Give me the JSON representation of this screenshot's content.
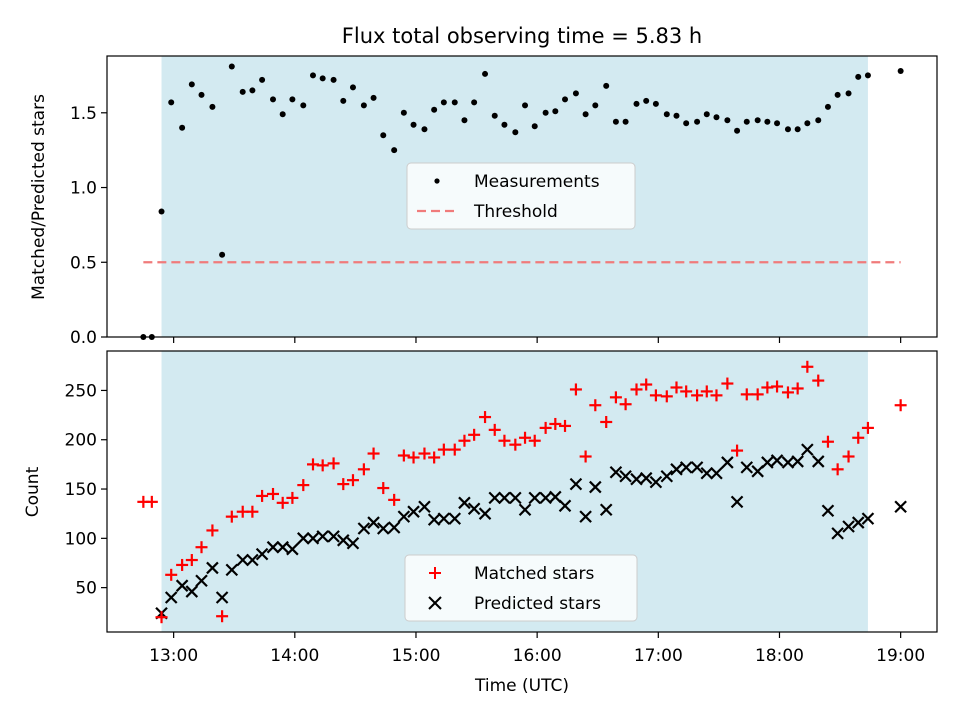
{
  "chart_data": [
    {
      "type": "scatter",
      "title": "Flux total observing time = 5.83 h",
      "ylabel": "Matched/Predicted stars",
      "xlabel": "",
      "x_units": "decimal hours UTC",
      "xlim": [
        12.45,
        19.3
      ],
      "ylim": [
        0,
        1.88
      ],
      "yticks": [
        0.0,
        0.5,
        1.0,
        1.5
      ],
      "ytick_labels": [
        "0.0",
        "0.5",
        "1.0",
        "1.5"
      ],
      "xticks": [
        13,
        14,
        15,
        16,
        17,
        18,
        19
      ],
      "shaded_region": {
        "x": [
          12.9,
          18.73
        ],
        "color": "#add8e6"
      },
      "legend": {
        "placement": "center"
      },
      "series": [
        {
          "name": "Measurements",
          "marker": "dot",
          "color": "#000000",
          "x": [
            12.75,
            12.82,
            12.9,
            12.98,
            13.07,
            13.15,
            13.23,
            13.32,
            13.4,
            13.48,
            13.57,
            13.65,
            13.73,
            13.82,
            13.9,
            13.98,
            14.07,
            14.15,
            14.23,
            14.32,
            14.4,
            14.48,
            14.57,
            14.65,
            14.73,
            14.82,
            14.9,
            14.98,
            15.07,
            15.15,
            15.23,
            15.32,
            15.4,
            15.48,
            15.57,
            15.65,
            15.73,
            15.82,
            15.9,
            15.98,
            16.07,
            16.15,
            16.23,
            16.32,
            16.4,
            16.48,
            16.57,
            16.65,
            16.73,
            16.82,
            16.9,
            16.98,
            17.07,
            17.15,
            17.23,
            17.32,
            17.4,
            17.48,
            17.57,
            17.65,
            17.73,
            17.82,
            17.9,
            17.98,
            18.07,
            18.15,
            18.23,
            18.32,
            18.4,
            18.48,
            18.57,
            18.65,
            18.73,
            19.0
          ],
          "y": [
            0.0,
            0.0,
            0.84,
            1.57,
            1.4,
            1.69,
            1.62,
            1.54,
            0.55,
            1.81,
            1.64,
            1.65,
            1.72,
            1.59,
            1.49,
            1.59,
            1.55,
            1.75,
            1.73,
            1.72,
            1.58,
            1.67,
            1.55,
            1.6,
            1.35,
            1.25,
            1.5,
            1.42,
            1.39,
            1.52,
            1.57,
            1.57,
            1.45,
            1.57,
            1.76,
            1.48,
            1.42,
            1.37,
            1.55,
            1.41,
            1.5,
            1.51,
            1.59,
            1.63,
            1.49,
            1.55,
            1.68,
            1.44,
            1.44,
            1.56,
            1.58,
            1.56,
            1.49,
            1.48,
            1.43,
            1.44,
            1.49,
            1.47,
            1.45,
            1.38,
            1.44,
            1.45,
            1.44,
            1.43,
            1.39,
            1.39,
            1.43,
            1.45,
            1.54,
            1.62,
            1.63,
            1.74,
            1.75,
            1.78
          ]
        },
        {
          "name": "Threshold",
          "type": "line",
          "style": "dashed",
          "color": "#f08080",
          "x": [
            12.75,
            19.0
          ],
          "y": [
            0.5,
            0.5
          ]
        }
      ]
    },
    {
      "type": "scatter",
      "title": "",
      "ylabel": "Count",
      "xlabel": "Time (UTC)",
      "x_units": "decimal hours UTC",
      "xlim": [
        12.45,
        19.3
      ],
      "ylim": [
        5,
        290
      ],
      "yticks": [
        50,
        100,
        150,
        200,
        250
      ],
      "ytick_labels": [
        "50",
        "100",
        "150",
        "200",
        "250"
      ],
      "xticks": [
        13,
        14,
        15,
        16,
        17,
        18,
        19
      ],
      "xtick_labels": [
        "13:00",
        "14:00",
        "15:00",
        "16:00",
        "17:00",
        "18:00",
        "19:00"
      ],
      "shaded_region": {
        "x": [
          12.9,
          18.73
        ],
        "color": "#add8e6"
      },
      "legend": {
        "placement": "bottom-center"
      },
      "series": [
        {
          "name": "Matched stars",
          "marker": "plus",
          "color": "#ff0000",
          "x": [
            12.75,
            12.82,
            12.9,
            12.98,
            13.07,
            13.15,
            13.23,
            13.32,
            13.4,
            13.48,
            13.57,
            13.65,
            13.73,
            13.82,
            13.9,
            13.98,
            14.07,
            14.15,
            14.23,
            14.32,
            14.4,
            14.48,
            14.57,
            14.65,
            14.73,
            14.82,
            14.9,
            14.98,
            15.07,
            15.15,
            15.23,
            15.32,
            15.4,
            15.48,
            15.57,
            15.65,
            15.73,
            15.82,
            15.9,
            15.98,
            16.07,
            16.15,
            16.23,
            16.32,
            16.4,
            16.48,
            16.57,
            16.65,
            16.73,
            16.82,
            16.9,
            16.98,
            17.07,
            17.15,
            17.23,
            17.32,
            17.4,
            17.48,
            17.57,
            17.65,
            17.73,
            17.82,
            17.9,
            17.98,
            18.07,
            18.15,
            18.23,
            18.32,
            18.4,
            18.48,
            18.57,
            18.65,
            18.73,
            19.0
          ],
          "y": [
            137,
            137,
            20,
            63,
            73,
            78,
            91,
            108,
            21,
            122,
            127,
            127,
            143,
            145,
            136,
            141,
            154,
            175,
            174,
            176,
            155,
            159,
            170,
            186,
            151,
            139,
            184,
            182,
            186,
            182,
            190,
            190,
            199,
            205,
            223,
            210,
            199,
            195,
            202,
            199,
            212,
            216,
            214,
            251,
            183,
            235,
            218,
            243,
            236,
            251,
            256,
            245,
            244,
            253,
            249,
            245,
            249,
            245,
            257,
            189,
            246,
            246,
            253,
            254,
            248,
            252,
            274,
            260,
            198,
            170,
            183,
            202,
            212,
            235
          ]
        },
        {
          "name": "Predicted stars",
          "marker": "x",
          "color": "#000000",
          "x": [
            12.9,
            12.98,
            13.07,
            13.15,
            13.23,
            13.32,
            13.4,
            13.48,
            13.57,
            13.65,
            13.73,
            13.82,
            13.9,
            13.98,
            14.07,
            14.15,
            14.23,
            14.32,
            14.4,
            14.48,
            14.57,
            14.65,
            14.73,
            14.82,
            14.9,
            14.98,
            15.07,
            15.15,
            15.23,
            15.32,
            15.4,
            15.48,
            15.57,
            15.65,
            15.73,
            15.82,
            15.9,
            15.98,
            16.07,
            16.15,
            16.23,
            16.32,
            16.4,
            16.48,
            16.57,
            16.65,
            16.73,
            16.82,
            16.9,
            16.98,
            17.07,
            17.15,
            17.23,
            17.32,
            17.4,
            17.48,
            17.57,
            17.65,
            17.73,
            17.82,
            17.9,
            17.98,
            18.07,
            18.15,
            18.23,
            18.32,
            18.4,
            18.48,
            18.57,
            18.65,
            18.73,
            19.0
          ],
          "y": [
            24,
            40,
            52,
            46,
            57,
            70,
            40,
            68,
            78,
            78,
            84,
            91,
            91,
            89,
            100,
            100,
            102,
            102,
            98,
            95,
            110,
            116,
            110,
            111,
            122,
            127,
            132,
            119,
            120,
            120,
            136,
            130,
            125,
            141,
            141,
            141,
            129,
            141,
            141,
            142,
            133,
            155,
            122,
            152,
            129,
            167,
            163,
            160,
            161,
            157,
            163,
            170,
            172,
            172,
            166,
            166,
            177,
            137,
            172,
            168,
            177,
            179,
            177,
            178,
            190,
            178,
            128,
            105,
            112,
            116,
            120,
            132
          ]
        }
      ]
    }
  ]
}
